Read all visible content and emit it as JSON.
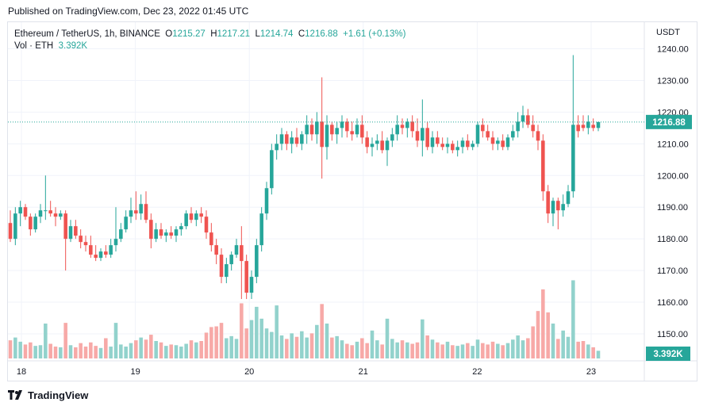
{
  "published": "Published on TradingView.com, Dec 23, 2022 01:45 UTC",
  "legend": {
    "symbol": "Ethereum / TetherUS, 1h, BINANCE",
    "o_label": "O",
    "o": "1215.27",
    "h_label": "H",
    "h": "1217.21",
    "l_label": "L",
    "l": "1214.74",
    "c_label": "C",
    "c": "1216.88",
    "change": "+1.61 (+0.13%)",
    "vol_label": "Vol · ETH",
    "vol_value": "3.392K"
  },
  "footer": {
    "brand": "TradingView",
    "logo_icon": "tradingview-logo-icon"
  },
  "colors": {
    "up": "#26a69a",
    "down": "#ef5350",
    "up_vol": "#92d2cc",
    "down_vol": "#f7a9a7",
    "grid": "#f0f3fa"
  },
  "chart_data": {
    "type": "candlestick",
    "currency_label": "USDT",
    "y_ticks": [
      1150,
      1160,
      1170,
      1180,
      1190,
      1200,
      1210,
      1220,
      1230,
      1240
    ],
    "y_tick_labels": [
      "1150.00",
      "1160.00",
      "1170.00",
      "1180.00",
      "1190.00",
      "1200.00",
      "1210.00",
      "1220.00",
      "1230.00",
      "1240.00"
    ],
    "ylim": [
      1142,
      1246
    ],
    "x_tick_labels": [
      "18",
      "19",
      "20",
      "21",
      "22",
      "23"
    ],
    "last_price_label": "1216.88",
    "last_price": 1216.88,
    "last_volume_label": "3.392K",
    "candles_ohlcv": [
      [
        1185,
        1189,
        1179,
        1180,
        2.6
      ],
      [
        1180,
        1190,
        1178,
        1188,
        3.0
      ],
      [
        1188,
        1192,
        1184,
        1190,
        2.4
      ],
      [
        1190,
        1191,
        1186,
        1187,
        2.0
      ],
      [
        1187,
        1188,
        1181,
        1183,
        2.3
      ],
      [
        1183,
        1188,
        1182,
        1187,
        1.8
      ],
      [
        1187,
        1191,
        1185,
        1189,
        1.9
      ],
      [
        1189,
        1200,
        1186,
        1189,
        5.0
      ],
      [
        1189,
        1192,
        1187,
        1188,
        2.1
      ],
      [
        1188,
        1190,
        1184,
        1187,
        1.7
      ],
      [
        1187,
        1189,
        1186,
        1188,
        1.6
      ],
      [
        1188,
        1189,
        1170,
        1180,
        5.1
      ],
      [
        1180,
        1186,
        1179,
        1184,
        1.9
      ],
      [
        1184,
        1186,
        1180,
        1181,
        1.6
      ],
      [
        1181,
        1183,
        1177,
        1179,
        2.2
      ],
      [
        1179,
        1181,
        1176,
        1178,
        1.7
      ],
      [
        1178,
        1181,
        1174,
        1175,
        2.3
      ],
      [
        1175,
        1178,
        1173,
        1174,
        1.8
      ],
      [
        1174,
        1177,
        1173,
        1176,
        1.5
      ],
      [
        1176,
        1178,
        1174,
        1175,
        2.9
      ],
      [
        1175,
        1180,
        1174,
        1178,
        1.7
      ],
      [
        1178,
        1190,
        1176,
        1180,
        5.1
      ],
      [
        1180,
        1185,
        1179,
        1183,
        2.0
      ],
      [
        1183,
        1189,
        1182,
        1187,
        1.7
      ],
      [
        1187,
        1193,
        1185,
        1189,
        2.2
      ],
      [
        1189,
        1195,
        1186,
        1188,
        2.6
      ],
      [
        1188,
        1194,
        1186,
        1191,
        3.0
      ],
      [
        1191,
        1195,
        1185,
        1186,
        2.7
      ],
      [
        1186,
        1188,
        1177,
        1180,
        3.4
      ],
      [
        1180,
        1185,
        1179,
        1183,
        2.5
      ],
      [
        1183,
        1185,
        1180,
        1181,
        2.3
      ],
      [
        1181,
        1183,
        1179,
        1182,
        1.8
      ],
      [
        1182,
        1184,
        1180,
        1181,
        2.0
      ],
      [
        1181,
        1184,
        1179,
        1183,
        1.9
      ],
      [
        1183,
        1185,
        1181,
        1184,
        1.7
      ],
      [
        1184,
        1189,
        1183,
        1188,
        2.1
      ],
      [
        1188,
        1190,
        1185,
        1186,
        2.6
      ],
      [
        1186,
        1189,
        1184,
        1188,
        2.3
      ],
      [
        1188,
        1190,
        1185,
        1187,
        2.5
      ],
      [
        1187,
        1189,
        1180,
        1182,
        3.7
      ],
      [
        1182,
        1185,
        1176,
        1178,
        4.5
      ],
      [
        1178,
        1180,
        1172,
        1175,
        4.6
      ],
      [
        1175,
        1177,
        1166,
        1168,
        5.1
      ],
      [
        1168,
        1174,
        1166,
        1172,
        2.9
      ],
      [
        1172,
        1176,
        1170,
        1175,
        3.2
      ],
      [
        1175,
        1180,
        1174,
        1178,
        2.8
      ],
      [
        1178,
        1184,
        1161,
        1173,
        7.9
      ],
      [
        1173,
        1175,
        1161,
        1163,
        4.3
      ],
      [
        1163,
        1170,
        1161,
        1168,
        5.5
      ],
      [
        1168,
        1180,
        1166,
        1178,
        7.4
      ],
      [
        1178,
        1190,
        1176,
        1188,
        5.7
      ],
      [
        1188,
        1198,
        1186,
        1196,
        4.3
      ],
      [
        1196,
        1210,
        1194,
        1208,
        3.8
      ],
      [
        1208,
        1213,
        1205,
        1210,
        7.6
      ],
      [
        1210,
        1215,
        1208,
        1213,
        3.3
      ],
      [
        1213,
        1214,
        1208,
        1210,
        2.8
      ],
      [
        1210,
        1214,
        1207,
        1212,
        3.6
      ],
      [
        1212,
        1215,
        1209,
        1210,
        3.1
      ],
      [
        1210,
        1214,
        1208,
        1213,
        3.9
      ],
      [
        1213,
        1219,
        1210,
        1216,
        3.0
      ],
      [
        1216,
        1218,
        1211,
        1213,
        3.6
      ],
      [
        1213,
        1220,
        1210,
        1217,
        4.8
      ],
      [
        1217,
        1231,
        1199,
        1209,
        7.8
      ],
      [
        1209,
        1219,
        1205,
        1216,
        5.0
      ],
      [
        1216,
        1217,
        1211,
        1213,
        3.0
      ],
      [
        1213,
        1217,
        1210,
        1215,
        3.2
      ],
      [
        1215,
        1219,
        1212,
        1217,
        2.6
      ],
      [
        1217,
        1218,
        1212,
        1214,
        2.1
      ],
      [
        1214,
        1217,
        1211,
        1213,
        1.9
      ],
      [
        1213,
        1218,
        1212,
        1216,
        2.4
      ],
      [
        1216,
        1219,
        1210,
        1212,
        2.9
      ],
      [
        1212,
        1214,
        1207,
        1209,
        2.2
      ],
      [
        1209,
        1212,
        1206,
        1210,
        4.0
      ],
      [
        1210,
        1213,
        1208,
        1211,
        2.6
      ],
      [
        1211,
        1214,
        1207,
        1208,
        2.0
      ],
      [
        1208,
        1212,
        1203,
        1211,
        5.7
      ],
      [
        1211,
        1215,
        1209,
        1213,
        2.8
      ],
      [
        1213,
        1219,
        1211,
        1216,
        2.3
      ],
      [
        1216,
        1218,
        1213,
        1215,
        2.6
      ],
      [
        1215,
        1218,
        1212,
        1217,
        2.3
      ],
      [
        1217,
        1219,
        1212,
        1214,
        2.1
      ],
      [
        1214,
        1218,
        1209,
        1211,
        2.3
      ],
      [
        1211,
        1224,
        1206,
        1215,
        5.6
      ],
      [
        1215,
        1217,
        1208,
        1209,
        3.3
      ],
      [
        1209,
        1214,
        1207,
        1212,
        2.7
      ],
      [
        1212,
        1214,
        1209,
        1210,
        2.3
      ],
      [
        1210,
        1212,
        1208,
        1209,
        2.0
      ],
      [
        1209,
        1212,
        1207,
        1210,
        2.4
      ],
      [
        1210,
        1211,
        1207,
        1208,
        1.9
      ],
      [
        1208,
        1211,
        1206,
        1209,
        1.8
      ],
      [
        1209,
        1212,
        1207,
        1211,
        2.0
      ],
      [
        1211,
        1213,
        1208,
        1209,
        2.2
      ],
      [
        1209,
        1211,
        1208,
        1210,
        1.8
      ],
      [
        1210,
        1217,
        1209,
        1216,
        2.7
      ],
      [
        1216,
        1218,
        1212,
        1214,
        2.2
      ],
      [
        1214,
        1216,
        1211,
        1212,
        2.0
      ],
      [
        1212,
        1214,
        1208,
        1210,
        2.4
      ],
      [
        1210,
        1212,
        1208,
        1211,
        2.1
      ],
      [
        1211,
        1213,
        1208,
        1209,
        1.9
      ],
      [
        1209,
        1213,
        1208,
        1212,
        2.2
      ],
      [
        1212,
        1216,
        1211,
        1214,
        2.7
      ],
      [
        1214,
        1220,
        1212,
        1217,
        3.3
      ],
      [
        1217,
        1222,
        1215,
        1219,
        2.6
      ],
      [
        1219,
        1221,
        1215,
        1216,
        2.9
      ],
      [
        1216,
        1219,
        1212,
        1214,
        4.6
      ],
      [
        1214,
        1216,
        1208,
        1211,
        6.8
      ],
      [
        1211,
        1213,
        1192,
        1195,
        9.9
      ],
      [
        1195,
        1197,
        1185,
        1188,
        6.6
      ],
      [
        1188,
        1193,
        1184,
        1192,
        5.0
      ],
      [
        1192,
        1193,
        1183,
        1189,
        2.8
      ],
      [
        1189,
        1194,
        1187,
        1191,
        4.0
      ],
      [
        1191,
        1197,
        1190,
        1195,
        3.1
      ],
      [
        1195,
        1238,
        1193,
        1216,
        11.2
      ],
      [
        1216,
        1219,
        1212,
        1214,
        2.4
      ],
      [
        1216,
        1219,
        1214,
        1215,
        2.5
      ],
      [
        1215,
        1219,
        1213,
        1217,
        2.0
      ],
      [
        1216,
        1218,
        1214,
        1215,
        1.6
      ],
      [
        1215,
        1217,
        1214,
        1216.88,
        1.1
      ]
    ]
  }
}
